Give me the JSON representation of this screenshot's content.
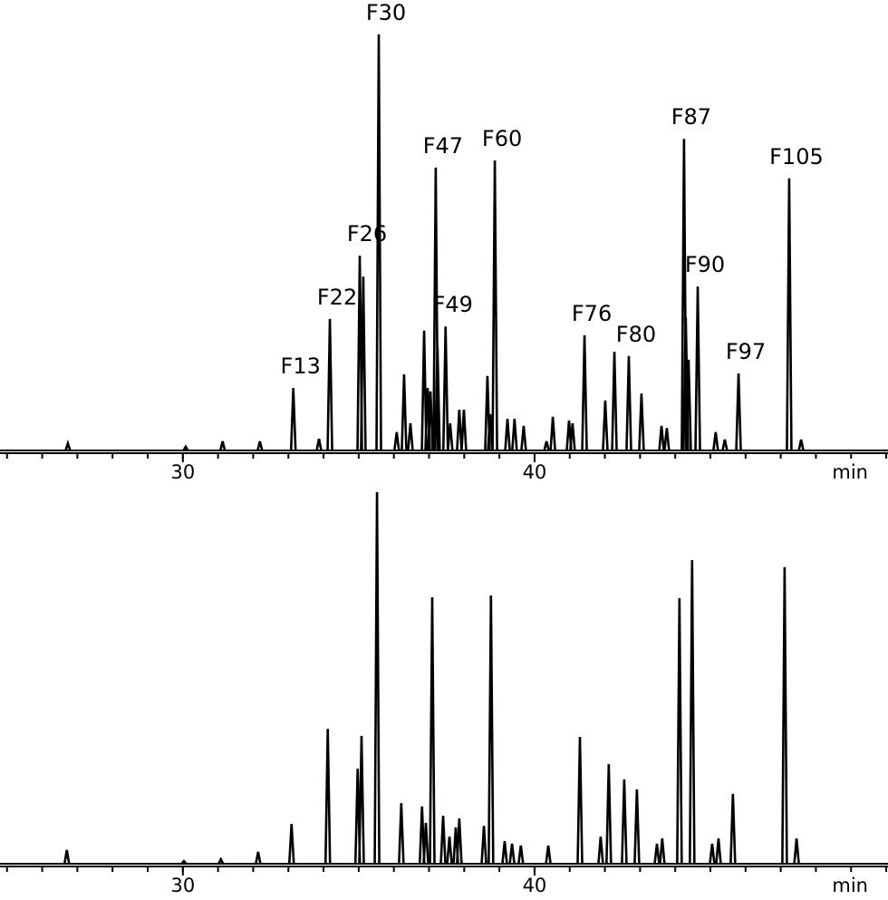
{
  "chart_data": [
    {
      "type": "peaks",
      "color": "#000000",
      "xlim": [
        24.8,
        50.05
      ],
      "xticks": [
        30,
        40
      ],
      "xminor": [
        25,
        26,
        27,
        28,
        29,
        30,
        31,
        32,
        33,
        34,
        35,
        36,
        37,
        38,
        39,
        40,
        41,
        42,
        43,
        44,
        45,
        46,
        47,
        48,
        49,
        50
      ],
      "xlabel": "min",
      "ylim": [
        0,
        100
      ],
      "x": [
        26.73,
        30.08,
        31.13,
        32.19,
        33.14,
        33.87,
        34.18,
        35.03,
        35.13,
        35.57,
        36.08,
        36.29,
        36.47,
        36.86,
        36.96,
        37.04,
        37.19,
        37.24,
        37.47,
        37.6,
        37.86,
        37.99,
        38.66,
        38.74,
        38.87,
        39.23,
        39.43,
        39.69,
        40.34,
        40.52,
        40.98,
        41.08,
        41.42,
        42.01,
        42.27,
        42.68,
        43.04,
        43.61,
        43.76,
        44.25,
        44.3,
        44.38,
        44.64,
        45.15,
        45.41,
        45.8,
        47.24,
        47.58
      ],
      "values": [
        1.7,
        0.9,
        2.2,
        2.2,
        15,
        2.8,
        31.6,
        46.8,
        41.8,
        100,
        4.4,
        18.3,
        6.5,
        28.8,
        15,
        14.2,
        68,
        24.8,
        29.8,
        6.5,
        9.8,
        9.8,
        17.9,
        8.7,
        69.7,
        7.6,
        7.6,
        5.9,
        2.2,
        8.1,
        7.2,
        6.5,
        27.7,
        12,
        23.7,
        22.7,
        13.7,
        5.9,
        5.4,
        74.9,
        32,
        21.8,
        39.4,
        4.4,
        2.6,
        18.5,
        65.4,
        2.6
      ],
      "annotations": [
        {
          "text": "F13",
          "x": 33.14,
          "y": 15
        },
        {
          "text": "F22",
          "x": 34.18,
          "y": 31.6
        },
        {
          "text": "F26",
          "x": 35.03,
          "y": 46.8
        },
        {
          "text": "F30",
          "x": 35.57,
          "y": 100
        },
        {
          "text": "F47",
          "x": 37.19,
          "y": 68
        },
        {
          "text": "F49",
          "x": 37.47,
          "y": 29.8
        },
        {
          "text": "F60",
          "x": 38.87,
          "y": 69.7
        },
        {
          "text": "F76",
          "x": 41.42,
          "y": 27.7
        },
        {
          "text": "F80",
          "x": 42.68,
          "y": 22.7
        },
        {
          "text": "F87",
          "x": 44.25,
          "y": 74.9
        },
        {
          "text": "F90",
          "x": 44.64,
          "y": 39.4
        },
        {
          "text": "F97",
          "x": 45.8,
          "y": 18.5
        },
        {
          "text": "F105",
          "x": 47.24,
          "y": 65.4
        }
      ]
    },
    {
      "type": "peaks",
      "color": "#000000",
      "xlim": [
        24.8,
        50.05
      ],
      "xticks": [
        30,
        40
      ],
      "xminor": [
        25,
        26,
        27,
        28,
        29,
        30,
        31,
        32,
        33,
        34,
        35,
        36,
        37,
        38,
        39,
        40,
        41,
        42,
        43,
        44,
        45,
        46,
        47,
        48,
        49,
        50
      ],
      "xlabel": "min",
      "ylim": [
        0,
        100
      ],
      "x": [
        26.7,
        30.03,
        31.08,
        32.14,
        33.09,
        34.12,
        34.97,
        35.08,
        35.52,
        36.21,
        36.8,
        36.91,
        37.09,
        37.4,
        37.58,
        37.76,
        37.86,
        38.56,
        38.76,
        39.15,
        39.36,
        39.61,
        40.39,
        41.29,
        41.88,
        42.11,
        42.55,
        42.91,
        43.48,
        43.63,
        44.12,
        44.48,
        45.05,
        45.23,
        45.64,
        47.11,
        47.45
      ],
      "values": [
        3.7,
        0.7,
        1.2,
        3.2,
        10.7,
        36.3,
        25.6,
        34.4,
        100,
        16.3,
        15.4,
        11,
        71.7,
        12.9,
        7.3,
        9.8,
        12.2,
        10.2,
        72.2,
        6.1,
        5.4,
        4.9,
        4.9,
        34.1,
        7.3,
        26.8,
        22.7,
        20,
        5.4,
        6.8,
        71.5,
        81.7,
        5.4,
        6.8,
        18.8,
        79.8,
        6.8
      ]
    }
  ]
}
